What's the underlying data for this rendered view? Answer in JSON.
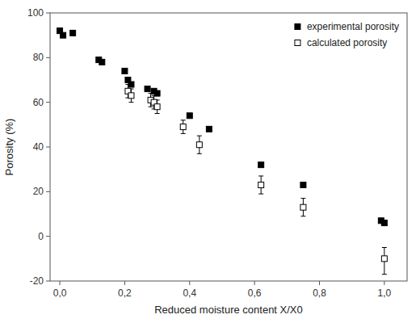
{
  "chart_data": {
    "type": "scatter",
    "xlabel": "Reduced moisture content X/X0",
    "ylabel": "Porosity (%)",
    "xlim": [
      -0.03,
      1.07
    ],
    "ylim": [
      -20,
      100
    ],
    "xticks": [
      {
        "value": 0.0,
        "label": "0,0"
      },
      {
        "value": 0.2,
        "label": "0,2"
      },
      {
        "value": 0.4,
        "label": "0,4"
      },
      {
        "value": 0.6,
        "label": "0,6"
      },
      {
        "value": 0.8,
        "label": "0,8"
      },
      {
        "value": 1.0,
        "label": "1,0"
      }
    ],
    "yticks": [
      -20,
      0,
      20,
      40,
      60,
      80,
      100
    ],
    "grid": false,
    "legend": "upper right",
    "series": [
      {
        "name": "experimental porosity",
        "color": "#000000",
        "marker": "filled-square",
        "x": [
          0.0,
          0.01,
          0.04,
          0.12,
          0.13,
          0.2,
          0.21,
          0.22,
          0.27,
          0.29,
          0.3,
          0.4,
          0.46,
          0.62,
          0.75,
          0.99,
          1.0
        ],
        "values": [
          92,
          90,
          91,
          79,
          78,
          74,
          70,
          68,
          66,
          65,
          64,
          54,
          48,
          32,
          23,
          7,
          6
        ]
      },
      {
        "name": "calculated porosity",
        "color": "#000000",
        "marker": "open-square",
        "x": [
          0.21,
          0.22,
          0.28,
          0.29,
          0.3,
          0.38,
          0.43,
          0.62,
          0.75,
          1.0
        ],
        "values": [
          65,
          63,
          61,
          60,
          58,
          49,
          41,
          23,
          13,
          -10
        ],
        "error_low": [
          3,
          3,
          3,
          3,
          3,
          3,
          4,
          4,
          4,
          7
        ],
        "error_high": [
          3,
          3,
          3,
          3,
          3,
          3,
          4,
          4,
          4,
          5
        ]
      }
    ]
  }
}
